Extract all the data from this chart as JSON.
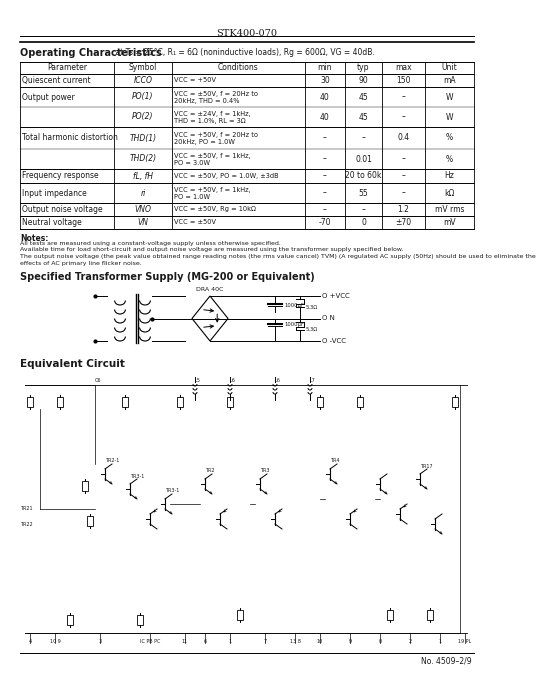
{
  "title": "STK400-070",
  "bg_color": "#ffffff",
  "text_color": "#1a1a1a",
  "op_char_bold": "Operating Characteristics",
  "op_char_rest": " at Ts = 25°C, R₁ = 6Ω (noninductive loads), Rg = 600Ω, VG = 40dB.",
  "table_headers": [
    "Parameter",
    "Symbol",
    "Conditions",
    "min",
    "typ",
    "max",
    "Unit"
  ],
  "table_rows": [
    [
      "Quiescent current",
      "ICCO",
      "VCC = +50V",
      "30",
      "90",
      "150",
      "mA",
      1
    ],
    [
      "Output power",
      "PO(1)",
      "VCC = ±50V, f = 20Hz to\n20kHz, THD = 0.4%",
      "40",
      "45",
      "–",
      "W",
      0
    ],
    [
      "",
      "PO(2)",
      "VCC = ±24V, f = 1kHz,\nTHD = 1.0%, RL = 3Ω",
      "40",
      "45",
      "–",
      "W",
      1
    ],
    [
      "Total harmonic distortion",
      "THD(1)",
      "VCC = +50V, f = 20Hz to\n20kHz, PO = 1.0W",
      "–",
      "–",
      "0.4",
      "%",
      0
    ],
    [
      "",
      "THD(2)",
      "VCC = ±50V, f = 1kHz,\nPO = 3.0W",
      "–",
      "0.01",
      "–",
      "%",
      1
    ],
    [
      "Frequency response",
      "fL, fH",
      "VCC = ±50V, PO = 1.0W, ±3dB",
      "–",
      "20 to 60k",
      "–",
      "Hz",
      1
    ],
    [
      "Input impedance",
      "ri",
      "VCC = +50V, f = 1kHz,\nPO = 1.0W",
      "–",
      "55",
      "–",
      "kΩ",
      1
    ],
    [
      "Output noise voltage",
      "VNO",
      "VCC = ±50V, Rg = 10kΩ",
      "–",
      "–",
      "1.2",
      "mV rms",
      1
    ],
    [
      "Neutral voltage",
      "VN",
      "VCC = ±50V",
      "-70",
      "0",
      "±70",
      "mV",
      1
    ]
  ],
  "notes_heading": "Notes:",
  "notes": [
    "All tests are measured using a constant-voltage supply unless otherwise specified.",
    "Available time for load short-circuit and output noise voltage are measured using the transformer supply specified below.",
    "The output noise voltage (the peak value obtained range reading notes (the rms value cancel) TVM) (A regulated AC supply (50Hz) should be used to eliminate the",
    "effects of AC primary line flicker noise."
  ],
  "trans_heading": "Specified Transformer Supply (MG-200 or Equivalent)",
  "eq_heading": "Equivalent Circuit",
  "footer": "No. 4509–2/9"
}
